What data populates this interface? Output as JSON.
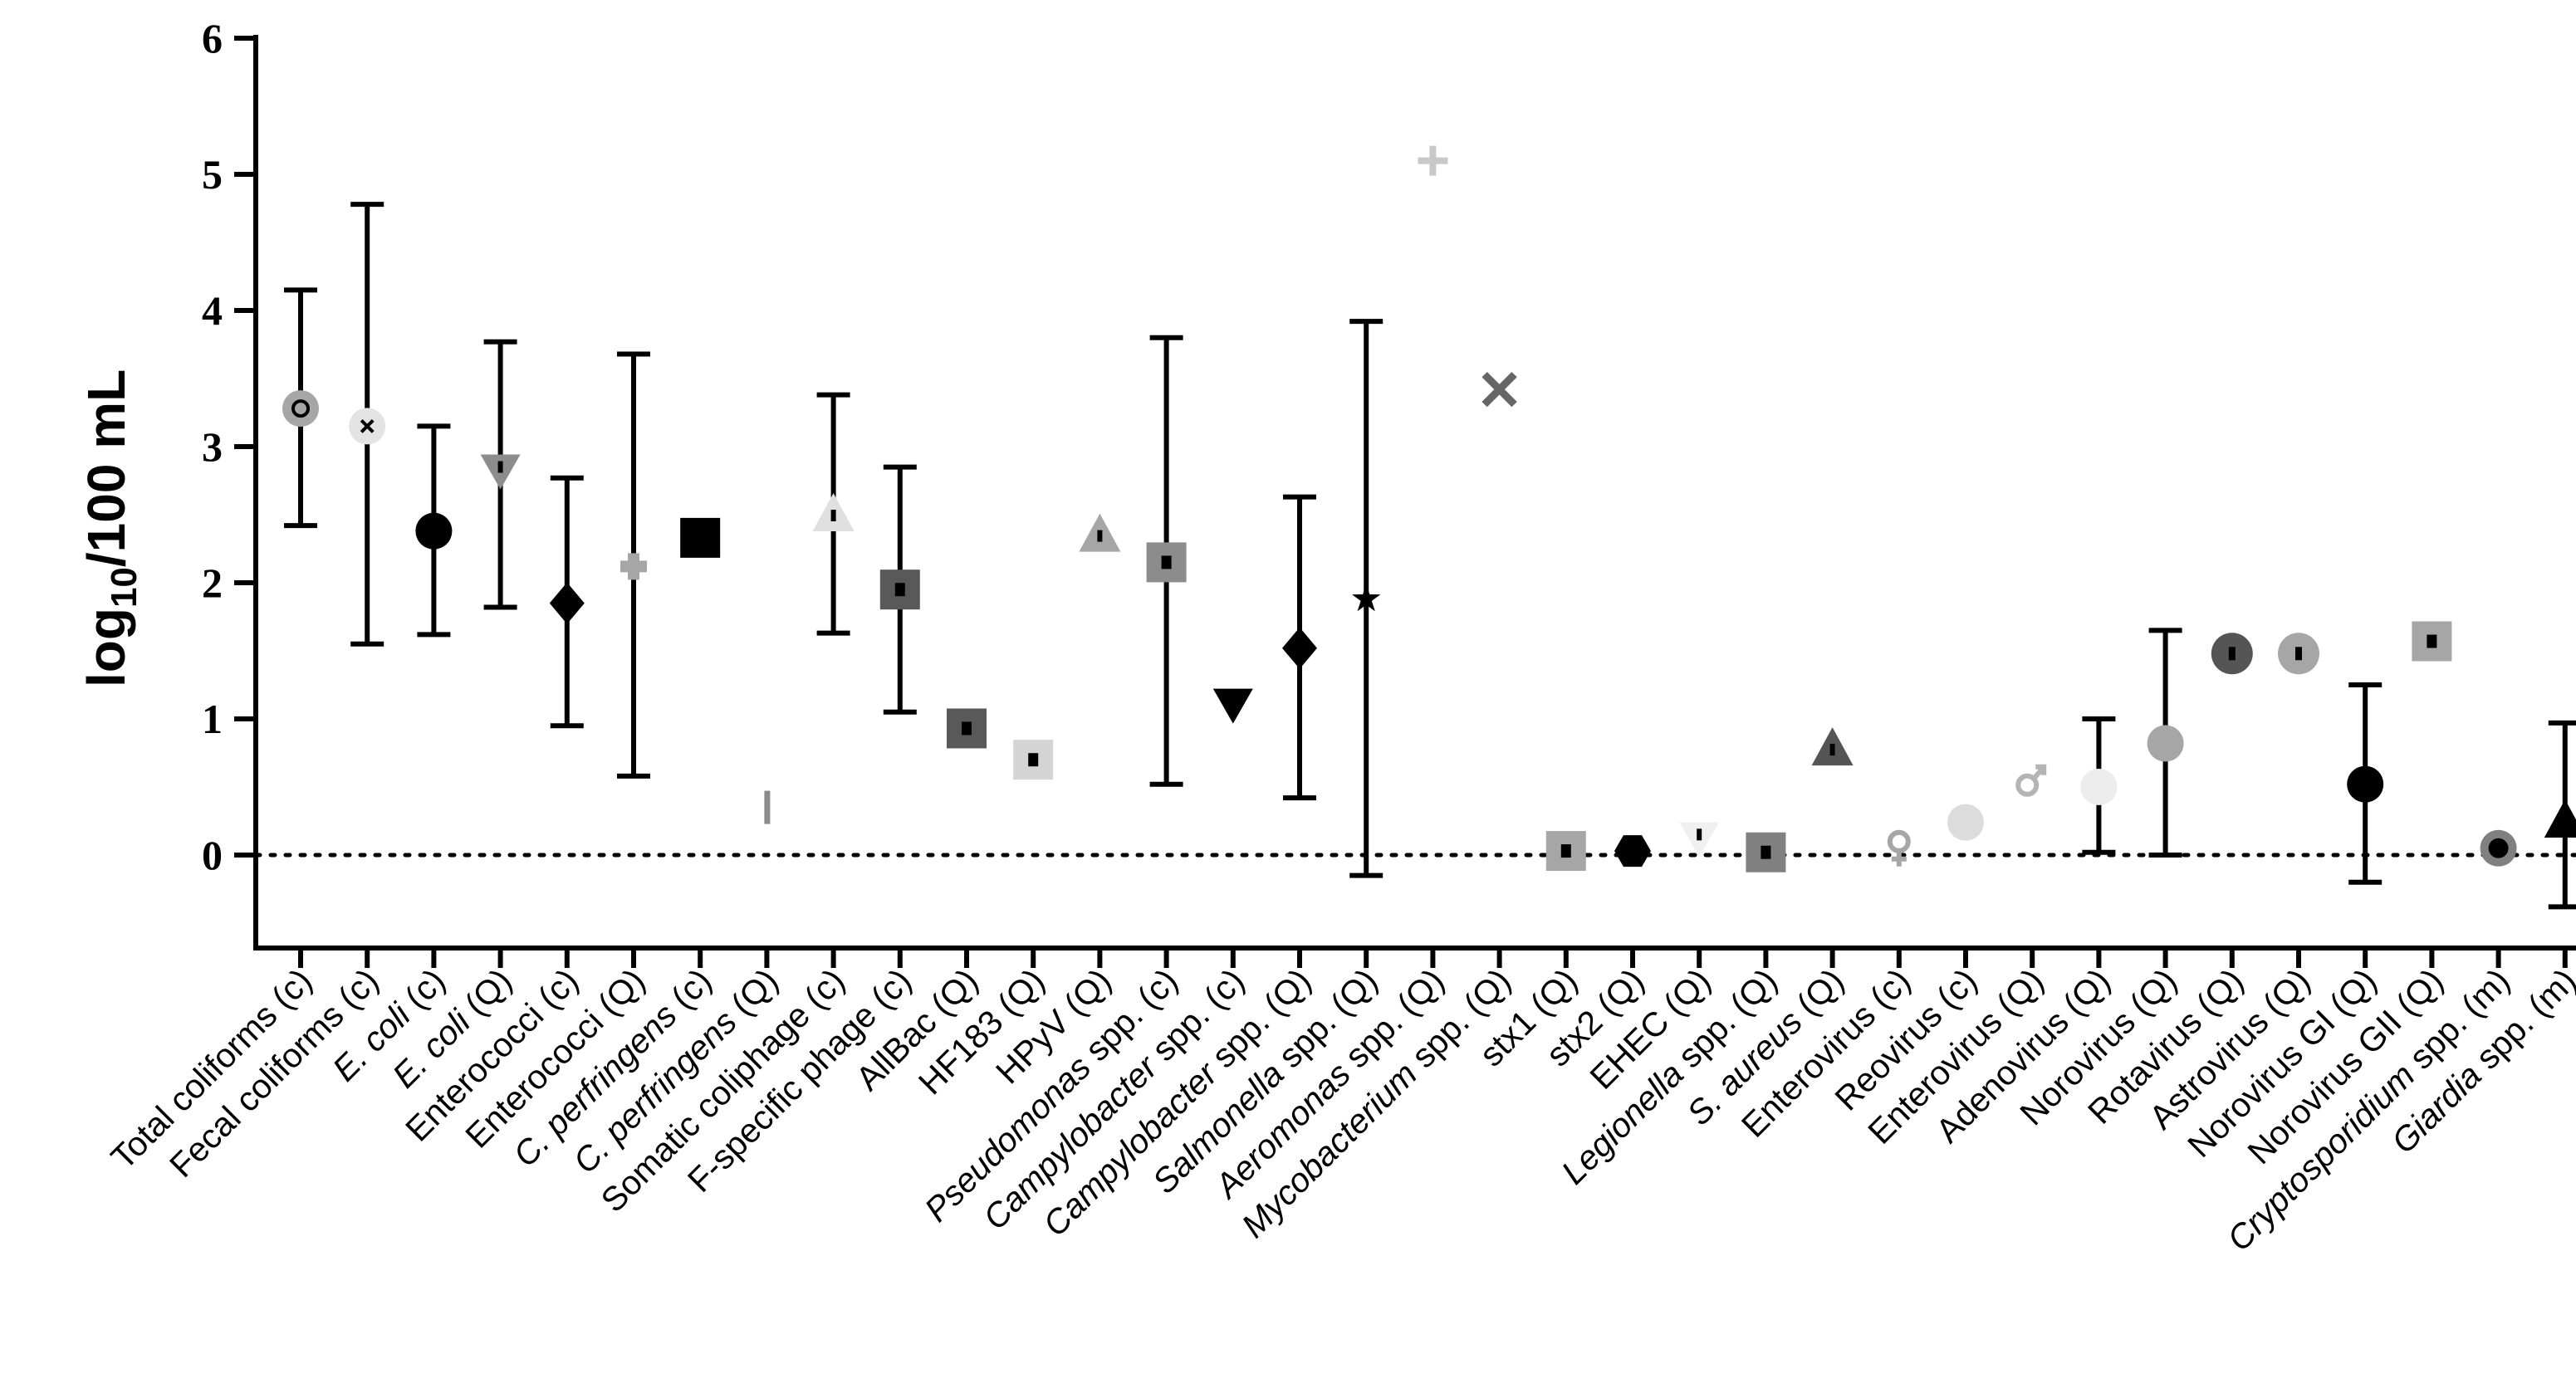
{
  "chart_data": {
    "type": "scatter",
    "ylabel": "log10/100 mL",
    "ylim": [
      -0.5,
      6
    ],
    "yticks": [
      0,
      1,
      2,
      3,
      4,
      5,
      6
    ],
    "reference_line": 0,
    "grid": false,
    "categories": [
      {
        "parts": [
          {
            "t": "Total coliforms"
          },
          {
            "t": " (c)"
          }
        ]
      },
      {
        "parts": [
          {
            "t": "Fecal coliforms"
          },
          {
            "t": " (c)"
          }
        ]
      },
      {
        "parts": [
          {
            "t": "E. coli",
            "i": true
          },
          {
            "t": " (c)"
          }
        ]
      },
      {
        "parts": [
          {
            "t": "E. coli",
            "i": true
          },
          {
            "t": " (Q)"
          }
        ]
      },
      {
        "parts": [
          {
            "t": "Enterococci"
          },
          {
            "t": " (c)"
          }
        ]
      },
      {
        "parts": [
          {
            "t": "Enterococci"
          },
          {
            "t": " (Q)"
          }
        ]
      },
      {
        "parts": [
          {
            "t": "C. perfringens",
            "i": true
          },
          {
            "t": " (c)"
          }
        ]
      },
      {
        "parts": [
          {
            "t": "C. perfringens",
            "i": true
          },
          {
            "t": " (Q)"
          }
        ]
      },
      {
        "parts": [
          {
            "t": "Somatic coliphage"
          },
          {
            "t": " (c)"
          }
        ]
      },
      {
        "parts": [
          {
            "t": "F-specific phage"
          },
          {
            "t": " (c)"
          }
        ]
      },
      {
        "parts": [
          {
            "t": "AllBac"
          },
          {
            "t": " (Q)"
          }
        ]
      },
      {
        "parts": [
          {
            "t": "HF183"
          },
          {
            "t": " (Q)"
          }
        ]
      },
      {
        "parts": [
          {
            "t": "HPyV"
          },
          {
            "t": " (Q)"
          }
        ]
      },
      {
        "parts": [
          {
            "t": "Pseudomonas",
            "i": true
          },
          {
            "t": " spp. (c)"
          }
        ]
      },
      {
        "parts": [
          {
            "t": "Campylobacter",
            "i": true
          },
          {
            "t": " spp. (c)"
          }
        ]
      },
      {
        "parts": [
          {
            "t": "Campylobacter",
            "i": true
          },
          {
            "t": " spp. (Q)"
          }
        ]
      },
      {
        "parts": [
          {
            "t": "Salmonella",
            "i": true
          },
          {
            "t": " spp. (Q)"
          }
        ]
      },
      {
        "parts": [
          {
            "t": "Aeromonas",
            "i": true
          },
          {
            "t": " spp. (Q)"
          }
        ]
      },
      {
        "parts": [
          {
            "t": "Mycobacterium",
            "i": true
          },
          {
            "t": " spp. (Q)"
          }
        ]
      },
      {
        "parts": [
          {
            "t": "stx1"
          },
          {
            "t": " (Q)"
          }
        ]
      },
      {
        "parts": [
          {
            "t": "stx2"
          },
          {
            "t": " (Q)"
          }
        ]
      },
      {
        "parts": [
          {
            "t": "EHEC"
          },
          {
            "t": " (Q)"
          }
        ]
      },
      {
        "parts": [
          {
            "t": "Legionella",
            "i": true
          },
          {
            "t": " spp. (Q)"
          }
        ]
      },
      {
        "parts": [
          {
            "t": "S. aureus",
            "i": true
          },
          {
            "t": " (Q)"
          }
        ]
      },
      {
        "parts": [
          {
            "t": "Enterovirus"
          },
          {
            "t": " (c)"
          }
        ]
      },
      {
        "parts": [
          {
            "t": "Reovirus"
          },
          {
            "t": " (c)"
          }
        ]
      },
      {
        "parts": [
          {
            "t": "Enterovirus"
          },
          {
            "t": " (Q)"
          }
        ]
      },
      {
        "parts": [
          {
            "t": "Adenovirus"
          },
          {
            "t": " (Q)"
          }
        ]
      },
      {
        "parts": [
          {
            "t": "Norovirus"
          },
          {
            "t": " (Q)"
          }
        ]
      },
      {
        "parts": [
          {
            "t": "Rotavirus"
          },
          {
            "t": " (Q)"
          }
        ]
      },
      {
        "parts": [
          {
            "t": "Astrovirus"
          },
          {
            "t": " (Q)"
          }
        ]
      },
      {
        "parts": [
          {
            "t": "Norovirus GI"
          },
          {
            "t": " (Q)"
          }
        ]
      },
      {
        "parts": [
          {
            "t": "Norovirus GII"
          },
          {
            "t": " (Q)"
          }
        ]
      },
      {
        "parts": [
          {
            "t": "Cryptosporidium",
            "i": true
          },
          {
            "t": " spp. (m)"
          }
        ]
      },
      {
        "parts": [
          {
            "t": "Giardia",
            "i": true
          },
          {
            "t": " spp. (m)"
          }
        ]
      }
    ],
    "points": [
      {
        "y": 3.28,
        "low": 2.42,
        "high": 4.15,
        "marker": "circle-ring",
        "color": "#a6a6a6"
      },
      {
        "y": 3.15,
        "low": 1.55,
        "high": 4.78,
        "marker": "circle-cross",
        "color": "#e3e3e3"
      },
      {
        "y": 2.38,
        "low": 1.62,
        "high": 3.15,
        "marker": "circle",
        "color": "#000000"
      },
      {
        "y": 2.82,
        "low": 1.82,
        "high": 3.77,
        "marker": "triangle-down",
        "color": "#8c8c8c"
      },
      {
        "y": 1.85,
        "low": 0.95,
        "high": 2.77,
        "marker": "diamond",
        "color": "#000000"
      },
      {
        "y": 2.12,
        "low": 0.58,
        "high": 3.68,
        "marker": "cross-fat",
        "color": "#a6a6a6"
      },
      {
        "y": 2.33,
        "marker": "square",
        "color": "#000000"
      },
      {
        "y": 0.35,
        "marker": "bar",
        "color": "#8c8c8c"
      },
      {
        "y": 2.5,
        "low": 1.63,
        "high": 3.38,
        "marker": "triangle-up",
        "color": "#e0e0e0"
      },
      {
        "y": 1.95,
        "low": 1.05,
        "high": 2.85,
        "marker": "square",
        "color": "#595959"
      },
      {
        "y": 0.93,
        "marker": "square",
        "color": "#595959"
      },
      {
        "y": 0.7,
        "marker": "square",
        "color": "#d4d4d4"
      },
      {
        "y": 2.35,
        "marker": "triangle-up",
        "color": "#a6a6a6"
      },
      {
        "y": 2.15,
        "low": 0.52,
        "high": 3.8,
        "marker": "square",
        "color": "#8c8c8c"
      },
      {
        "y": 1.1,
        "marker": "triangle-down",
        "color": "#000000"
      },
      {
        "y": 1.52,
        "low": 0.42,
        "high": 2.63,
        "marker": "diamond",
        "color": "#000000"
      },
      {
        "y": 1.88,
        "low": -0.15,
        "high": 3.92,
        "marker": "star",
        "color": "#000000"
      },
      {
        "y": 5.1,
        "marker": "plus",
        "color": "#c8c8c8"
      },
      {
        "y": 3.42,
        "marker": "x",
        "color": "#666666"
      },
      {
        "y": 0.03,
        "marker": "square",
        "color": "#a6a6a6"
      },
      {
        "y": 0.03,
        "marker": "hexagon",
        "color": "#000000"
      },
      {
        "y": 0.12,
        "marker": "triangle-down",
        "color": "#f0f0f0"
      },
      {
        "y": 0.02,
        "marker": "square",
        "color": "#808080"
      },
      {
        "y": 0.78,
        "marker": "triangle-up",
        "color": "#555555"
      },
      {
        "y": 0.05,
        "marker": "female",
        "color": "#a6a6a6"
      },
      {
        "y": 0.24,
        "marker": "circle",
        "color": "#dcdcdc"
      },
      {
        "y": 0.55,
        "marker": "male",
        "color": "#b4b4b4"
      },
      {
        "y": 0.5,
        "low": 0.02,
        "high": 1.0,
        "marker": "circle",
        "color": "#ececec"
      },
      {
        "y": 0.82,
        "low": 0.0,
        "high": 1.65,
        "marker": "circle",
        "color": "#a6a6a6"
      },
      {
        "y": 1.48,
        "marker": "circle-half",
        "color": "#555555"
      },
      {
        "y": 1.48,
        "marker": "circle-half",
        "color": "#a6a6a6"
      },
      {
        "y": 0.52,
        "low": -0.2,
        "high": 1.25,
        "marker": "circle",
        "color": "#000000"
      },
      {
        "y": 1.57,
        "marker": "square",
        "color": "#a6a6a6"
      },
      {
        "y": 0.05,
        "marker": "circle-dot",
        "color": "#808080"
      },
      {
        "y": 0.25,
        "low": -0.38,
        "high": 0.97,
        "marker": "triangle-up",
        "color": "#000000"
      }
    ]
  }
}
